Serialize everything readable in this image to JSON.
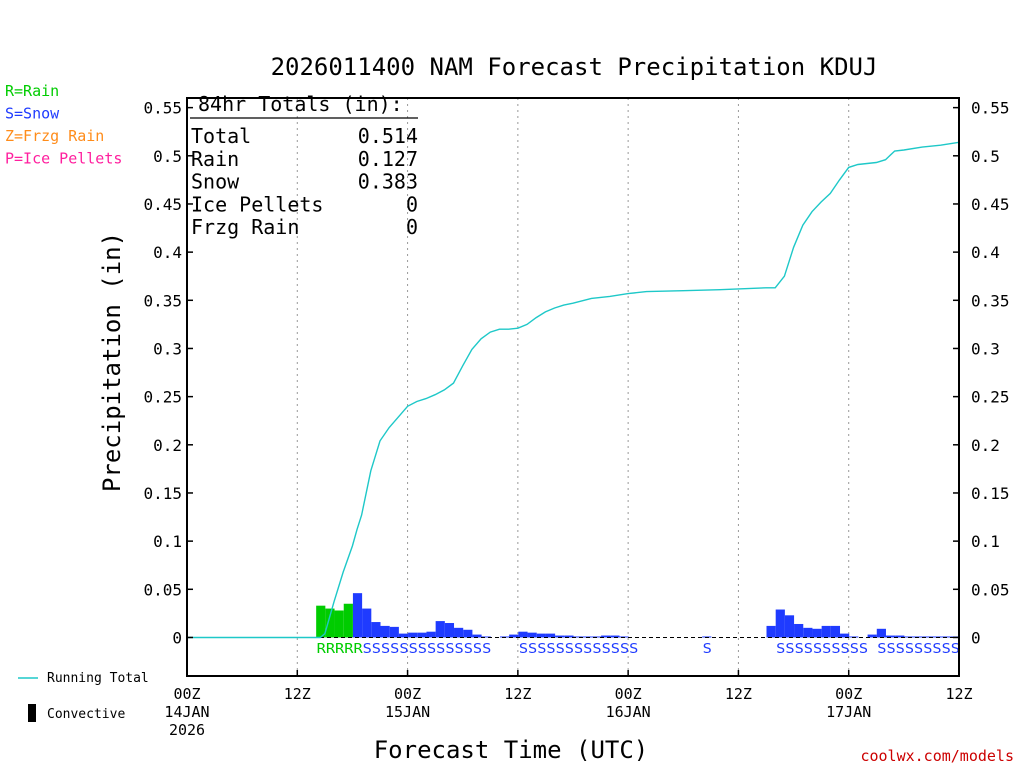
{
  "chart_data": {
    "type": "bar",
    "title": "2026011400 NAM Forecast Precipitation KDUJ",
    "xlabel": "Forecast Time (UTC)",
    "ylabel": "Precipitation (in)",
    "credit": "coolwx.com/models",
    "colors": {
      "rain": "#00cc00",
      "snow": "#1f3bff",
      "frzg_rain": "#ff8c1a",
      "ice_pellets": "#ff1f9e",
      "running_total": "#1ec8c8",
      "convective": "#000000",
      "grid": "#999999"
    },
    "precip_legend": [
      {
        "label": "R=Rain",
        "color": "#00cc00"
      },
      {
        "label": "S=Snow",
        "color": "#1f3bff"
      },
      {
        "label": "Z=Frzg Rain",
        "color": "#ff8c1a"
      },
      {
        "label": "P=Ice Pellets",
        "color": "#ff1f9e"
      }
    ],
    "bottom_legend": {
      "running_total": "Running Total",
      "convective": "Convective"
    },
    "totals_box": {
      "heading": "84hr Totals (in):",
      "rows": [
        {
          "label": "Total",
          "value": "0.514"
        },
        {
          "label": "Rain",
          "value": "0.127"
        },
        {
          "label": "Snow",
          "value": "0.383"
        },
        {
          "label": "Ice Pellets",
          "value": "0"
        },
        {
          "label": "Frzg Rain",
          "value": "0"
        }
      ]
    },
    "xlim": [
      0,
      84
    ],
    "ylim": [
      -0.04,
      0.56
    ],
    "y_ticks": [
      0,
      0.05,
      0.1,
      0.15,
      0.2,
      0.25,
      0.3,
      0.35,
      0.4,
      0.45,
      0.5,
      0.55
    ],
    "y_tick_labels": [
      "0",
      "0.05",
      "0.1",
      "0.15",
      "0.2",
      "0.25",
      "0.3",
      "0.35",
      "0.4",
      "0.45",
      "0.5",
      "0.55"
    ],
    "x_ticks": [
      {
        "hour": 0,
        "lines": [
          "00Z",
          "14JAN",
          "2026"
        ]
      },
      {
        "hour": 12,
        "lines": [
          "12Z"
        ]
      },
      {
        "hour": 24,
        "lines": [
          "00Z",
          "15JAN"
        ]
      },
      {
        "hour": 36,
        "lines": [
          "12Z"
        ]
      },
      {
        "hour": 48,
        "lines": [
          "00Z",
          "16JAN"
        ]
      },
      {
        "hour": 60,
        "lines": [
          "12Z"
        ]
      },
      {
        "hour": 72,
        "lines": [
          "00Z",
          "17JAN"
        ]
      },
      {
        "hour": 84,
        "lines": [
          "12Z"
        ]
      }
    ],
    "bars": [
      {
        "hour": 15,
        "value": 0.033,
        "type": "R"
      },
      {
        "hour": 16,
        "value": 0.03,
        "type": "R"
      },
      {
        "hour": 17,
        "value": 0.028,
        "type": "R"
      },
      {
        "hour": 18,
        "value": 0.035,
        "type": "R"
      },
      {
        "hour": 19,
        "value": 0.046,
        "type": "S"
      },
      {
        "hour": 20,
        "value": 0.03,
        "type": "S"
      },
      {
        "hour": 21,
        "value": 0.016,
        "type": "S"
      },
      {
        "hour": 22,
        "value": 0.012,
        "type": "S"
      },
      {
        "hour": 23,
        "value": 0.011,
        "type": "S"
      },
      {
        "hour": 24,
        "value": 0.004,
        "type": "S"
      },
      {
        "hour": 25,
        "value": 0.005,
        "type": "S"
      },
      {
        "hour": 26,
        "value": 0.005,
        "type": "S"
      },
      {
        "hour": 27,
        "value": 0.006,
        "type": "S"
      },
      {
        "hour": 28,
        "value": 0.017,
        "type": "S"
      },
      {
        "hour": 29,
        "value": 0.015,
        "type": "S"
      },
      {
        "hour": 30,
        "value": 0.01,
        "type": "S"
      },
      {
        "hour": 31,
        "value": 0.008,
        "type": "S"
      },
      {
        "hour": 32,
        "value": 0.003,
        "type": "S"
      },
      {
        "hour": 33,
        "value": 0.0005,
        "type": "S"
      },
      {
        "hour": 35,
        "value": 0.001,
        "type": "S"
      },
      {
        "hour": 36,
        "value": 0.003,
        "type": "S"
      },
      {
        "hour": 37,
        "value": 0.006,
        "type": "S"
      },
      {
        "hour": 38,
        "value": 0.005,
        "type": "S"
      },
      {
        "hour": 39,
        "value": 0.004,
        "type": "S"
      },
      {
        "hour": 40,
        "value": 0.004,
        "type": "S"
      },
      {
        "hour": 41,
        "value": 0.002,
        "type": "S"
      },
      {
        "hour": 42,
        "value": 0.002,
        "type": "S"
      },
      {
        "hour": 43,
        "value": 0.001,
        "type": "S"
      },
      {
        "hour": 44,
        "value": 0.001,
        "type": "S"
      },
      {
        "hour": 45,
        "value": 0.001,
        "type": "S"
      },
      {
        "hour": 46,
        "value": 0.002,
        "type": "S"
      },
      {
        "hour": 47,
        "value": 0.002,
        "type": "S"
      },
      {
        "hour": 48,
        "value": 0.001,
        "type": "S"
      },
      {
        "hour": 57,
        "value": 0.0005,
        "type": "S"
      },
      {
        "hour": 64,
        "value": 0.012,
        "type": "S"
      },
      {
        "hour": 65,
        "value": 0.029,
        "type": "S"
      },
      {
        "hour": 66,
        "value": 0.023,
        "type": "S"
      },
      {
        "hour": 67,
        "value": 0.014,
        "type": "S"
      },
      {
        "hour": 68,
        "value": 0.01,
        "type": "S"
      },
      {
        "hour": 69,
        "value": 0.009,
        "type": "S"
      },
      {
        "hour": 70,
        "value": 0.012,
        "type": "S"
      },
      {
        "hour": 71,
        "value": 0.012,
        "type": "S"
      },
      {
        "hour": 72,
        "value": 0.004,
        "type": "S"
      },
      {
        "hour": 73,
        "value": 0.0005,
        "type": "S"
      },
      {
        "hour": 75,
        "value": 0.003,
        "type": "S"
      },
      {
        "hour": 76,
        "value": 0.009,
        "type": "S"
      },
      {
        "hour": 77,
        "value": 0.002,
        "type": "S"
      },
      {
        "hour": 78,
        "value": 0.002,
        "type": "S"
      },
      {
        "hour": 79,
        "value": 0.001,
        "type": "S"
      },
      {
        "hour": 80,
        "value": 0.001,
        "type": "S"
      },
      {
        "hour": 81,
        "value": 0.001,
        "type": "S"
      },
      {
        "hour": 82,
        "value": 0.001,
        "type": "S"
      },
      {
        "hour": 83,
        "value": 0.001,
        "type": "S"
      },
      {
        "hour": 84,
        "value": 0.001,
        "type": "S"
      }
    ],
    "type_codes": [
      {
        "start_hour": 15,
        "text": "RRRRR",
        "color": "#00cc00"
      },
      {
        "start_hour": 20,
        "text": "SSSSSSSSSSSSSS",
        "color": "#1f3bff"
      },
      {
        "start_hour": 37,
        "text": "SSSSSSSSSSSSS",
        "color": "#1f3bff"
      },
      {
        "start_hour": 57,
        "text": "S",
        "color": "#1f3bff"
      },
      {
        "start_hour": 65,
        "text": "SSSSSSSSSS",
        "color": "#1f3bff"
      },
      {
        "start_hour": 76,
        "text": "SSSSSSSSS",
        "color": "#1f3bff"
      }
    ],
    "running_total": {
      "name": "Running Total",
      "x": [
        0,
        14.5,
        15,
        16,
        17,
        18,
        18.5,
        19,
        20,
        21,
        22,
        23,
        24,
        25,
        26,
        27,
        28,
        29,
        30,
        31,
        32,
        33,
        34,
        35,
        36,
        37,
        38,
        39,
        40,
        41,
        42,
        44,
        46,
        48,
        50,
        54,
        58,
        63,
        64,
        65,
        66,
        67,
        68,
        69,
        70,
        71,
        72,
        73,
        74,
        75,
        76,
        77,
        78,
        80,
        82,
        84
      ],
      "y": [
        0,
        0,
        0.004,
        0.037,
        0.068,
        0.095,
        0.112,
        0.127,
        0.173,
        0.204,
        0.218,
        0.229,
        0.24,
        0.245,
        0.248,
        0.252,
        0.257,
        0.264,
        0.282,
        0.299,
        0.31,
        0.317,
        0.32,
        0.32,
        0.321,
        0.325,
        0.332,
        0.338,
        0.342,
        0.345,
        0.347,
        0.352,
        0.354,
        0.357,
        0.359,
        0.36,
        0.361,
        0.363,
        0.363,
        0.375,
        0.405,
        0.428,
        0.442,
        0.452,
        0.461,
        0.475,
        0.488,
        0.491,
        0.492,
        0.493,
        0.496,
        0.505,
        0.506,
        0.509,
        0.511,
        0.514
      ]
    }
  }
}
